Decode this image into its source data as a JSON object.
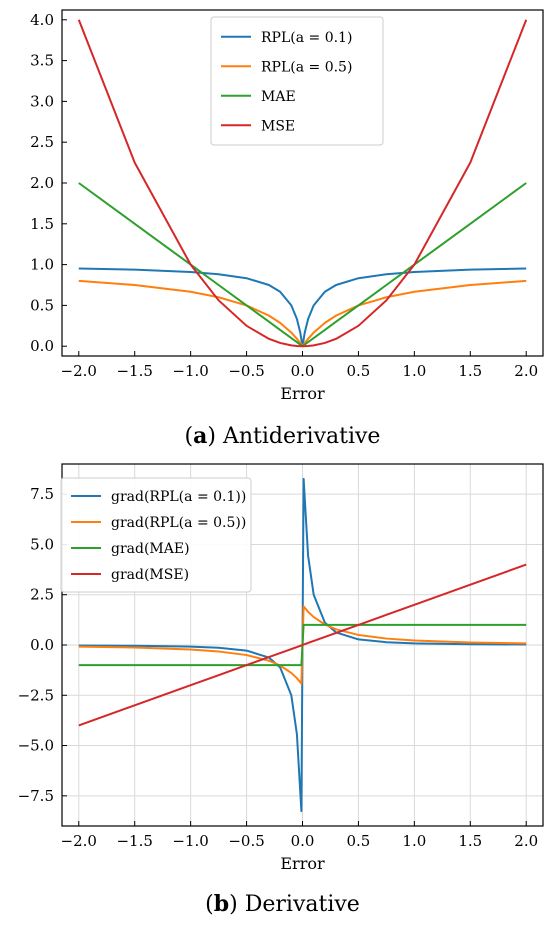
{
  "chart_data": [
    {
      "type": "line",
      "caption": {
        "letter": "a",
        "open": "(",
        "close": ")",
        "text": " Antiderivative"
      },
      "xlabel": "Error",
      "ylabel": "",
      "xlim": [
        -2.15,
        2.15
      ],
      "ylim": [
        -0.12,
        4.12
      ],
      "xticks": [
        -2.0,
        -1.5,
        -1.0,
        -0.5,
        0.0,
        0.5,
        1.0,
        1.5,
        2.0
      ],
      "xtick_labels": [
        "−2.0",
        "−1.5",
        "−1.0",
        "−0.5",
        "0.0",
        "0.5",
        "1.0",
        "1.5",
        "2.0"
      ],
      "yticks": [
        0.0,
        0.5,
        1.0,
        1.5,
        2.0,
        2.5,
        3.0,
        3.5,
        4.0
      ],
      "ytick_labels": [
        "0.0",
        "0.5",
        "1.0",
        "1.5",
        "2.0",
        "2.5",
        "3.0",
        "3.5",
        "4.0"
      ],
      "grid": false,
      "legend_placement": "top-center",
      "x": [
        -2.0,
        -1.5,
        -1.0,
        -0.75,
        -0.5,
        -0.3,
        -0.2,
        -0.1,
        -0.05,
        -0.02,
        0.0,
        0.02,
        0.05,
        0.1,
        0.2,
        0.3,
        0.5,
        0.75,
        1.0,
        1.5,
        2.0
      ],
      "series": [
        {
          "name": "RPL(a = 0.1)",
          "color": "#1f77b4",
          "values": [
            0.952,
            0.938,
            0.909,
            0.882,
            0.833,
            0.75,
            0.667,
            0.5,
            0.333,
            0.167,
            0.0,
            0.167,
            0.333,
            0.5,
            0.667,
            0.75,
            0.833,
            0.882,
            0.909,
            0.938,
            0.952
          ]
        },
        {
          "name": "RPL(a = 0.5)",
          "color": "#ff7f0e",
          "values": [
            0.8,
            0.75,
            0.667,
            0.6,
            0.5,
            0.375,
            0.286,
            0.167,
            0.091,
            0.038,
            0.0,
            0.038,
            0.091,
            0.167,
            0.286,
            0.375,
            0.5,
            0.6,
            0.667,
            0.75,
            0.8
          ]
        },
        {
          "name": "MAE",
          "color": "#2ca02c",
          "values": [
            2.0,
            1.5,
            1.0,
            0.75,
            0.5,
            0.3,
            0.2,
            0.1,
            0.05,
            0.02,
            0.0,
            0.02,
            0.05,
            0.1,
            0.2,
            0.3,
            0.5,
            0.75,
            1.0,
            1.5,
            2.0
          ]
        },
        {
          "name": "MSE",
          "color": "#d62728",
          "values": [
            4.0,
            2.25,
            1.0,
            0.5625,
            0.25,
            0.09,
            0.04,
            0.01,
            0.0025,
            0.0004,
            0.0,
            0.0004,
            0.0025,
            0.01,
            0.04,
            0.09,
            0.25,
            0.5625,
            1.0,
            2.25,
            4.0
          ]
        }
      ]
    },
    {
      "type": "line",
      "caption": {
        "letter": "b",
        "open": "(",
        "close": ")",
        "text": " Derivative"
      },
      "xlabel": "Error",
      "ylabel": "",
      "xlim": [
        -2.15,
        2.15
      ],
      "ylim": [
        -9.0,
        9.0
      ],
      "xticks": [
        -2.0,
        -1.5,
        -1.0,
        -0.5,
        0.0,
        0.5,
        1.0,
        1.5,
        2.0
      ],
      "xtick_labels": [
        "−2.0",
        "−1.5",
        "−1.0",
        "−0.5",
        "0.0",
        "0.5",
        "1.0",
        "1.5",
        "2.0"
      ],
      "yticks": [
        -7.5,
        -5.0,
        -2.5,
        0.0,
        2.5,
        5.0,
        7.5
      ],
      "ytick_labels": [
        "−7.5",
        "−5.0",
        "−2.5",
        "0.0",
        "2.5",
        "5.0",
        "7.5"
      ],
      "grid": true,
      "legend_placement": "top-left",
      "x": [
        -2.0,
        -1.5,
        -1.0,
        -0.75,
        -0.5,
        -0.3,
        -0.2,
        -0.1,
        -0.05,
        -0.01,
        0.0,
        0.01,
        0.05,
        0.1,
        0.2,
        0.3,
        0.5,
        0.75,
        1.0,
        1.5,
        2.0
      ],
      "series": [
        {
          "name": "grad(RPL(a = 0.1))",
          "color": "#1f77b4",
          "values": [
            -0.023,
            -0.039,
            -0.083,
            -0.139,
            -0.278,
            -0.625,
            -1.111,
            -2.5,
            -4.44,
            -8.26,
            0.0,
            8.26,
            4.44,
            2.5,
            1.111,
            0.625,
            0.278,
            0.139,
            0.083,
            0.039,
            0.023
          ]
        },
        {
          "name": "grad(RPL(a = 0.5))",
          "color": "#ff7f0e",
          "values": [
            -0.08,
            -0.125,
            -0.222,
            -0.32,
            -0.5,
            -0.781,
            -1.02,
            -1.389,
            -1.65,
            -1.92,
            0.0,
            1.92,
            1.65,
            1.389,
            1.02,
            0.781,
            0.5,
            0.32,
            0.222,
            0.125,
            0.08
          ]
        },
        {
          "name": "grad(MAE)",
          "color": "#2ca02c",
          "values": [
            -1.0,
            -1.0,
            -1.0,
            -1.0,
            -1.0,
            -1.0,
            -1.0,
            -1.0,
            -1.0,
            -1.0,
            0.0,
            1.0,
            1.0,
            1.0,
            1.0,
            1.0,
            1.0,
            1.0,
            1.0,
            1.0,
            1.0
          ]
        },
        {
          "name": "grad(MSE)",
          "color": "#d62728",
          "values": [
            -4.0,
            -3.0,
            -2.0,
            -1.5,
            -1.0,
            -0.6,
            -0.4,
            -0.2,
            -0.1,
            -0.02,
            0.0,
            0.02,
            0.1,
            0.2,
            0.4,
            0.6,
            1.0,
            1.5,
            2.0,
            3.0,
            4.0
          ]
        }
      ]
    }
  ]
}
